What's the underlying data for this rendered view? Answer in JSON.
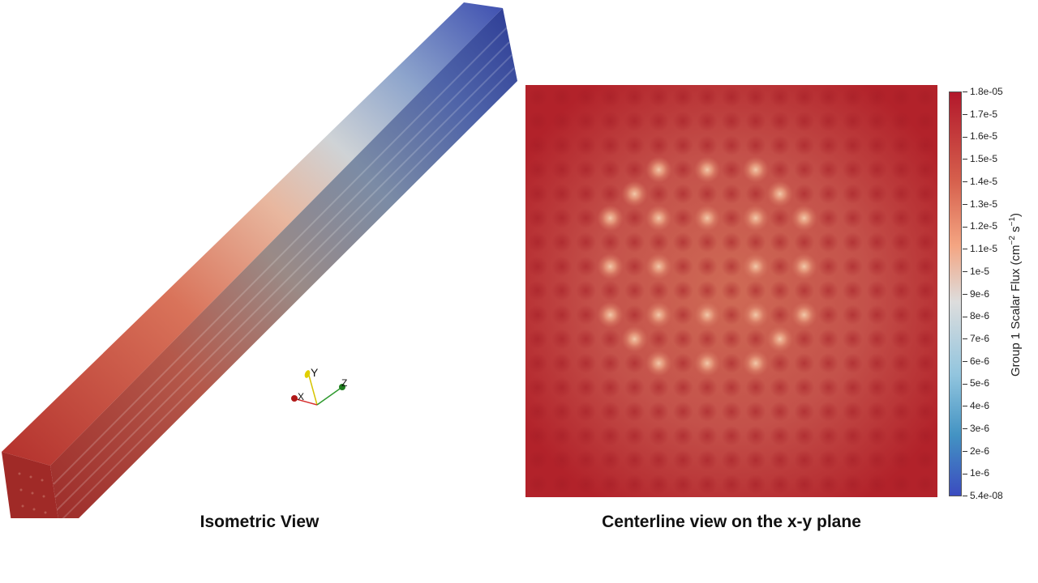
{
  "captions": {
    "isometric": "Isometric View",
    "centerline": "Centerline view on the x-y plane"
  },
  "axes_widget": {
    "x": "X",
    "y": "Y",
    "z": "Z"
  },
  "colorbar": {
    "title": "Group 1 Scalar Flux (cm",
    "title_unit_sup1": "−2",
    "title_mid": " s",
    "title_unit_sup2": "−1",
    "title_end": ")",
    "ticks": [
      "1.8e-05",
      "1.7e-5",
      "1.6e-5",
      "1.5e-5",
      "1.4e-5",
      "1.3e-5",
      "1.2e-5",
      "1.1e-5",
      "1e-5",
      "9e-6",
      "8e-6",
      "7e-6",
      "6e-6",
      "5e-6",
      "4e-6",
      "3e-6",
      "2e-6",
      "1e-6",
      "5.4e-08"
    ],
    "colors": {
      "high": "#b2182b",
      "mid": "#dddddd",
      "low": "#3b4cc0"
    }
  },
  "hotspots": [
    [
      5,
      3
    ],
    [
      7,
      3
    ],
    [
      9,
      3
    ],
    [
      4,
      4
    ],
    [
      10,
      4
    ],
    [
      3,
      5
    ],
    [
      5,
      5
    ],
    [
      7,
      5
    ],
    [
      9,
      5
    ],
    [
      11,
      5
    ],
    [
      3,
      7
    ],
    [
      5,
      7
    ],
    [
      9,
      7
    ],
    [
      11,
      7
    ],
    [
      3,
      9
    ],
    [
      5,
      9
    ],
    [
      7,
      9
    ],
    [
      9,
      9
    ],
    [
      11,
      9
    ],
    [
      4,
      10
    ],
    [
      10,
      10
    ],
    [
      5,
      11
    ],
    [
      7,
      11
    ],
    [
      9,
      11
    ]
  ],
  "grid_size": 17
}
